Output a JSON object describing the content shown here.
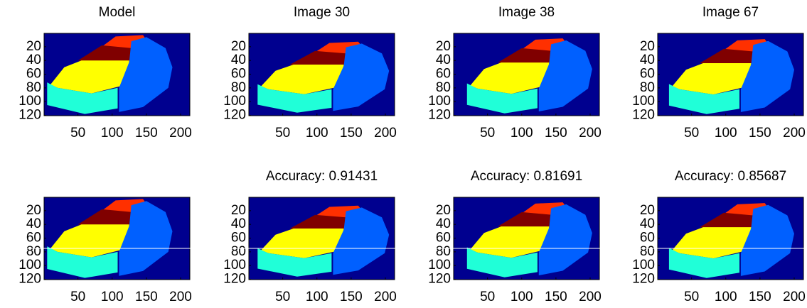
{
  "chart_data": [
    {
      "type": "image",
      "title": "Model",
      "xlim": [
        0.5,
        213.5
      ],
      "ylim": [
        0.5,
        120.5
      ],
      "xticks": [
        50,
        100,
        150,
        200
      ],
      "yticks": [
        20,
        40,
        60,
        80,
        100,
        120
      ]
    },
    {
      "type": "image",
      "title": "Image 30",
      "xlim": [
        0.5,
        213.5
      ],
      "ylim": [
        0.5,
        120.5
      ],
      "xticks": [
        50,
        100,
        150,
        200
      ],
      "yticks": [
        20,
        40,
        60,
        80,
        100,
        120
      ]
    },
    {
      "type": "image",
      "title": "Image 38",
      "xlim": [
        0.5,
        213.5
      ],
      "ylim": [
        0.5,
        120.5
      ],
      "xticks": [
        50,
        100,
        150,
        200
      ],
      "yticks": [
        20,
        40,
        60,
        80,
        100,
        120
      ]
    },
    {
      "type": "image",
      "title": "Image 67",
      "xlim": [
        0.5,
        213.5
      ],
      "ylim": [
        0.5,
        120.5
      ],
      "xticks": [
        50,
        100,
        150,
        200
      ],
      "yticks": [
        20,
        40,
        60,
        80,
        100,
        120
      ]
    },
    {
      "type": "image",
      "xlim": [
        0.5,
        213.5
      ],
      "ylim": [
        0.5,
        120.5
      ],
      "xticks": [
        50,
        100,
        150,
        200
      ],
      "yticks": [
        20,
        40,
        60,
        80,
        100,
        120
      ]
    },
    {
      "type": "image",
      "title": "Accuracy: 0.91431",
      "xlim": [
        0.5,
        213.5
      ],
      "ylim": [
        0.5,
        120.5
      ],
      "xticks": [
        50,
        100,
        150,
        200
      ],
      "yticks": [
        20,
        40,
        60,
        80,
        100,
        120
      ]
    },
    {
      "type": "image",
      "title": "Accuracy: 0.81691",
      "xlim": [
        0.5,
        213.5
      ],
      "ylim": [
        0.5,
        120.5
      ],
      "xticks": [
        50,
        100,
        150,
        200
      ],
      "yticks": [
        20,
        40,
        60,
        80,
        100,
        120
      ]
    },
    {
      "type": "image",
      "title": "Accuracy: 0.85687",
      "xlim": [
        0.5,
        213.5
      ],
      "ylim": [
        0.5,
        120.5
      ],
      "xticks": [
        50,
        100,
        150,
        200
      ],
      "yticks": [
        20,
        40,
        60,
        80,
        100,
        120
      ]
    }
  ]
}
